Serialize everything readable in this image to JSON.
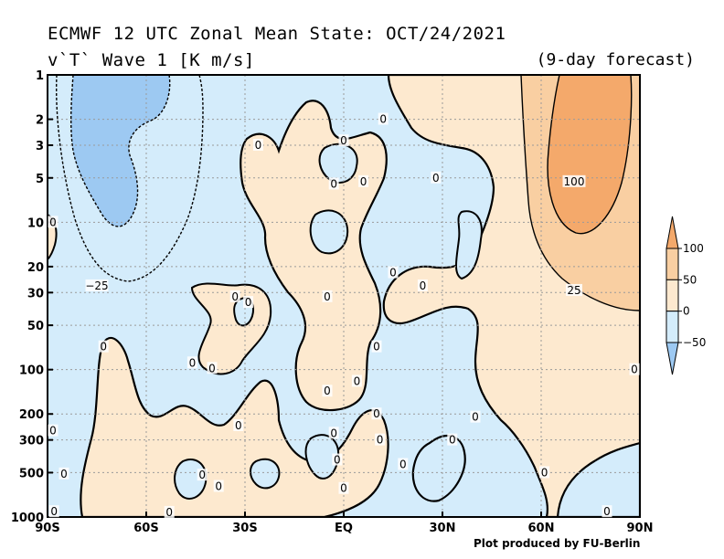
{
  "header": {
    "title_line1": "ECMWF 12 UTC Zonal Mean State: OCT/24/2021",
    "title_line2": "v`T` Wave 1 [K m/s]",
    "forecast_note": "(9-day forecast)",
    "credit": "Plot produced by FU-Berlin"
  },
  "colors": {
    "neg_heavy": "#9dc9f2",
    "neg_light": "#d4ecfb",
    "pos_light": "#fde9cf",
    "pos_mid": "#f9cfa2",
    "pos_heavy": "#f4a96b",
    "contour": "#000000",
    "grid": "#9a9a9a"
  },
  "chart_data": {
    "type": "heatmap",
    "title": "ECMWF 12 UTC Zonal Mean State: OCT/24/2021",
    "subtitle": "v`T` Wave 1 [K m/s]",
    "x_axis": {
      "range": [
        -90,
        90
      ],
      "ticks": [
        -90,
        -60,
        -30,
        0,
        30,
        60,
        90
      ],
      "tick_labels": [
        "90S",
        "60S",
        "30S",
        "EQ",
        "30N",
        "60N",
        "90N"
      ]
    },
    "y_axis": {
      "scale": "log",
      "inverted": true,
      "range": [
        1000,
        1
      ],
      "ticks": [
        1,
        2,
        3,
        5,
        10,
        20,
        30,
        50,
        100,
        200,
        300,
        500,
        1000
      ],
      "tick_labels": [
        "1",
        "2",
        "3",
        "5",
        "10",
        "20",
        "30",
        "50",
        "100",
        "200",
        "300",
        "500",
        "1000"
      ]
    },
    "grid": true,
    "contour_levels": [
      -50,
      -25,
      0,
      25,
      50,
      100
    ],
    "colorbar": {
      "position": "right",
      "levels": [
        -50,
        0,
        50,
        100
      ],
      "tick_labels": [
        "−50",
        "0",
        "50",
        "100"
      ]
    },
    "regions": [
      {
        "sign": "negative",
        "bounds_lat": [
          -90,
          -42
        ],
        "bounds_p": [
          1,
          50
        ]
      },
      {
        "sign": "negative",
        "bounds_lat": [
          -80,
          -62
        ],
        "bounds_p": [
          1,
          12
        ]
      },
      {
        "sign": "positive",
        "bounds_lat": [
          -80,
          -40
        ],
        "bounds_p": [
          60,
          1000
        ]
      },
      {
        "sign": "positive",
        "bounds_lat": [
          -30,
          10
        ],
        "bounds_p": [
          1.5,
          120
        ]
      },
      {
        "sign": "positive",
        "bounds_lat": [
          -25,
          18
        ],
        "bounds_p": [
          120,
          1000
        ]
      },
      {
        "sign": "positive",
        "bounds_lat": [
          15,
          90
        ],
        "bounds_p": [
          1,
          1000
        ]
      },
      {
        "sign": "positive",
        "bounds_lat": [
          62,
          88
        ],
        "bounds_p": [
          1,
          15
        ]
      },
      {
        "sign": "negative",
        "bounds_lat": [
          30,
          90
        ],
        "bounds_p": [
          300,
          1000
        ]
      }
    ],
    "contour_labels": [
      {
        "value": "0",
        "lat": -89,
        "p": 10
      },
      {
        "value": "−25",
        "lat": -75,
        "p": 27
      },
      {
        "value": "0",
        "lat": -26,
        "p": 3
      },
      {
        "value": "0",
        "lat": 0,
        "p": 2.8
      },
      {
        "value": "0",
        "lat": 12,
        "p": 2
      },
      {
        "value": "0",
        "lat": -3,
        "p": 5.5
      },
      {
        "value": "0",
        "lat": 6,
        "p": 5.3
      },
      {
        "value": "0",
        "lat": 28,
        "p": 5
      },
      {
        "value": "0",
        "lat": 15,
        "p": 22
      },
      {
        "value": "0",
        "lat": 24,
        "p": 27
      },
      {
        "value": "100",
        "lat": 70,
        "p": 5.3
      },
      {
        "value": "25",
        "lat": 70,
        "p": 29
      },
      {
        "value": "0",
        "lat": -33,
        "p": 32
      },
      {
        "value": "0",
        "lat": -29,
        "p": 35
      },
      {
        "value": "0",
        "lat": -5,
        "p": 32
      },
      {
        "value": "0",
        "lat": -73,
        "p": 70
      },
      {
        "value": "0",
        "lat": -46,
        "p": 90
      },
      {
        "value": "0",
        "lat": -40,
        "p": 98
      },
      {
        "value": "0",
        "lat": 10,
        "p": 70
      },
      {
        "value": "0",
        "lat": 4,
        "p": 120
      },
      {
        "value": "0",
        "lat": -5,
        "p": 140
      },
      {
        "value": "0",
        "lat": -32,
        "p": 240
      },
      {
        "value": "0",
        "lat": 10,
        "p": 200
      },
      {
        "value": "0",
        "lat": 40,
        "p": 210
      },
      {
        "value": "0",
        "lat": -3,
        "p": 270
      },
      {
        "value": "0",
        "lat": 11,
        "p": 300
      },
      {
        "value": "0",
        "lat": 33,
        "p": 300
      },
      {
        "value": "0",
        "lat": -2,
        "p": 410
      },
      {
        "value": "0",
        "lat": 18,
        "p": 440
      },
      {
        "value": "0",
        "lat": -43,
        "p": 520
      },
      {
        "value": "0",
        "lat": -38,
        "p": 620
      },
      {
        "value": "0",
        "lat": -85,
        "p": 510
      },
      {
        "value": "0",
        "lat": -89,
        "p": 260
      },
      {
        "value": "0",
        "lat": -88,
        "p": 920
      },
      {
        "value": "0",
        "lat": -53,
        "p": 930
      },
      {
        "value": "0",
        "lat": 0,
        "p": 640
      },
      {
        "value": "0",
        "lat": 61,
        "p": 500
      },
      {
        "value": "0",
        "lat": 80,
        "p": 920
      },
      {
        "value": "0",
        "lat": 89,
        "p": 100
      }
    ]
  }
}
